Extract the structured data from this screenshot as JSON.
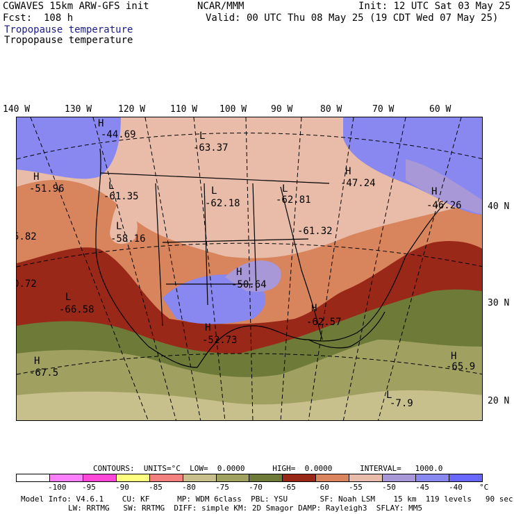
{
  "header": {
    "model": "CGWAVES 15km ARW-GFS init",
    "fcst": "Fcst:  108 h",
    "field_blue": "Tropopause temperature",
    "field_black": "Tropopause temperature",
    "org": "NCAR/MMM",
    "init": "Init: 12 UTC Sat 03 May 25",
    "valid": "Valid: 00 UTC Thu 08 May 25 (19 CDT Wed 07 May 25)"
  },
  "longitude_labels": [
    "140 W",
    "130 W",
    "120 W",
    "110 W",
    "100 W",
    "90 W",
    "80 W",
    "70 W",
    "60 W"
  ],
  "latitude_labels": [
    "40 N",
    "30 N",
    "20 N"
  ],
  "centers": [
    {
      "type": "H",
      "value": "-44.69"
    },
    {
      "type": "L",
      "value": "-63.37"
    },
    {
      "type": "H",
      "value": "-51.96"
    },
    {
      "type": "L",
      "value": "-61.35"
    },
    {
      "type": "L",
      "value": "-62.18"
    },
    {
      "type": "L",
      "value": "-62.81"
    },
    {
      "type": "H",
      "value": "-47.24"
    },
    {
      "type": "H",
      "value": "-46.26"
    },
    {
      "type": "",
      "value": "-61.32"
    },
    {
      "type": "L",
      "value": "-58.16"
    },
    {
      "type": "",
      "value": "5.82"
    },
    {
      "type": "H",
      "value": "-50.64"
    },
    {
      "type": "",
      "value": "0.72"
    },
    {
      "type": "L",
      "value": "-66.58"
    },
    {
      "type": "H",
      "value": "-62.57"
    },
    {
      "type": "H",
      "value": "-52.73"
    },
    {
      "type": "H",
      "value": "-67.5"
    },
    {
      "type": "H",
      "value": "-65.9"
    },
    {
      "type": "L",
      "value": "-7.9"
    }
  ],
  "contours": {
    "line": "CONTOURS:  UNITS=°C  LOW=  0.0000      HIGH=  0.0000      INTERVAL=   1000.0"
  },
  "colorbar": {
    "colors": [
      "#ffffff",
      "#ff80ff",
      "#ff48d8",
      "#ffff80",
      "#f48080",
      "#c8c08c",
      "#a0a060",
      "#6e7a38",
      "#9a2818",
      "#d8845c",
      "#e8bca8",
      "#a898d8",
      "#8888f0",
      "#6868ff"
    ],
    "ticks": [
      "-100",
      "-95",
      "-90",
      "-85",
      "-80",
      "-75",
      "-70",
      "-65",
      "-60",
      "-55",
      "-50",
      "-45",
      "-40",
      "°C"
    ]
  },
  "footer": {
    "line1": "Model Info: V4.6.1    CU: KF      MP: WDM 6class  PBL: YSU       SF: Noah LSM    15 km  119 levels   90 sec",
    "line2": "LW: RRTMG   SW: RRTMG  DIFF: simple KM: 2D Smagor DAMP: Rayleigh3  SFLAY: MM5"
  }
}
